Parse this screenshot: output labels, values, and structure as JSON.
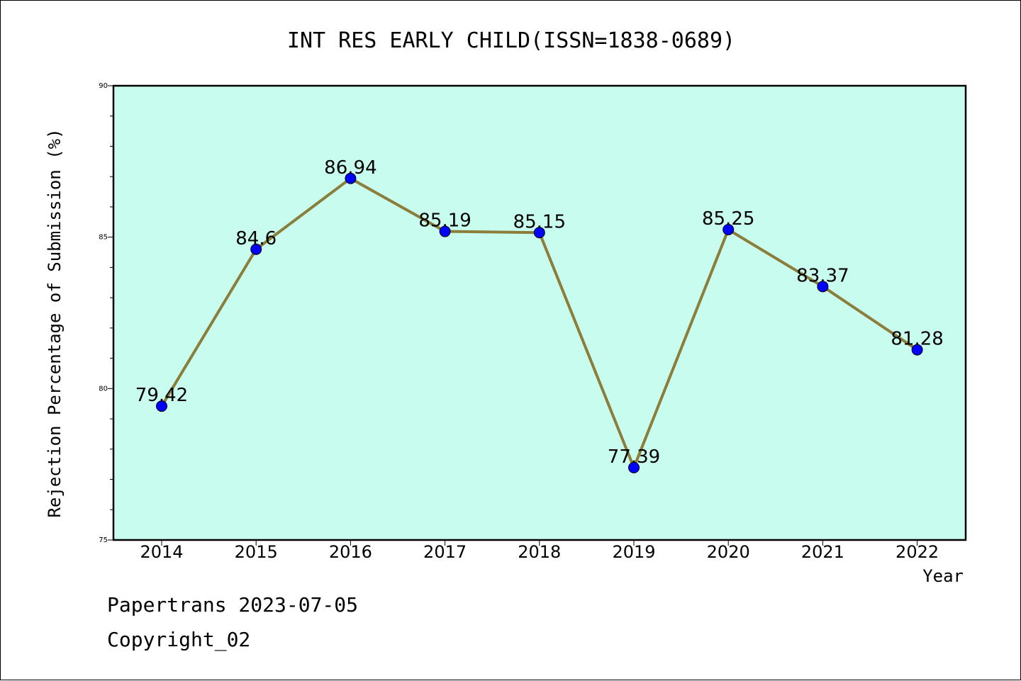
{
  "chart_data": {
    "type": "line",
    "title": "INT RES EARLY CHILD(ISSN=1838-0689)",
    "xlabel": "Year",
    "ylabel": "Rejection Percentage of Submission (%)",
    "categories": [
      "2014",
      "2015",
      "2016",
      "2017",
      "2018",
      "2019",
      "2020",
      "2021",
      "2022"
    ],
    "series": [
      {
        "values": [
          79.42,
          84.6,
          86.94,
          85.19,
          85.15,
          77.39,
          85.25,
          83.37,
          81.28
        ],
        "labels": [
          "79.42",
          "84.6",
          "86.94",
          "85.19",
          "85.15",
          "77.39",
          "85.25",
          "83.37",
          "81.28"
        ]
      }
    ],
    "ylim": [
      75,
      90
    ],
    "yticks": [
      "75",
      "80",
      "85",
      "90"
    ],
    "grid": false,
    "plot_background": "#c8fcee",
    "line_color": "#8b7d3a",
    "marker_color": "#0000ff"
  },
  "footer": {
    "line1": "Papertrans 2023-07-05",
    "line2": "Copyright_02"
  }
}
